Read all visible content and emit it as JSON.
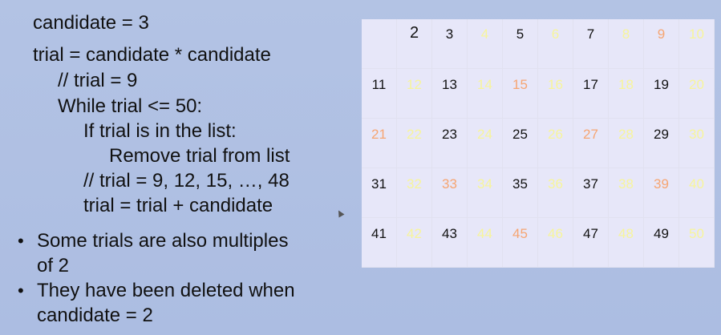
{
  "slide": {
    "code_lines": [
      "candidate = 3",
      "trial = candidate * candidate",
      "// trial = 9",
      "While trial <= 50:",
      "If trial is in the list:",
      "Remove trial from list",
      "// trial = 9, 12, 15, …, 48",
      "trial = trial + candidate"
    ],
    "bullets": [
      {
        "lines": [
          "Some trials are also multiples",
          "of 2"
        ]
      },
      {
        "lines": [
          "They have been deleted when",
          "candidate = 2"
        ]
      }
    ],
    "bullet_glyph": "•"
  },
  "grid": {
    "colors": {
      "black": "#111111",
      "yellow": "#f7f59a",
      "orange": "#f6a572"
    },
    "cells": [
      {
        "n": "",
        "c": "black"
      },
      {
        "n": "2",
        "c": "black"
      },
      {
        "n": "3",
        "c": "black"
      },
      {
        "n": "4",
        "c": "yellow"
      },
      {
        "n": "5",
        "c": "black"
      },
      {
        "n": "6",
        "c": "yellow"
      },
      {
        "n": "7",
        "c": "black"
      },
      {
        "n": "8",
        "c": "yellow"
      },
      {
        "n": "9",
        "c": "orange"
      },
      {
        "n": "10",
        "c": "yellow"
      },
      {
        "n": "11",
        "c": "black"
      },
      {
        "n": "12",
        "c": "yellow"
      },
      {
        "n": "13",
        "c": "black"
      },
      {
        "n": "14",
        "c": "yellow"
      },
      {
        "n": "15",
        "c": "orange"
      },
      {
        "n": "16",
        "c": "yellow"
      },
      {
        "n": "17",
        "c": "black"
      },
      {
        "n": "18",
        "c": "yellow"
      },
      {
        "n": "19",
        "c": "black"
      },
      {
        "n": "20",
        "c": "yellow"
      },
      {
        "n": "21",
        "c": "orange"
      },
      {
        "n": "22",
        "c": "yellow"
      },
      {
        "n": "23",
        "c": "black"
      },
      {
        "n": "24",
        "c": "yellow"
      },
      {
        "n": "25",
        "c": "black"
      },
      {
        "n": "26",
        "c": "yellow"
      },
      {
        "n": "27",
        "c": "orange"
      },
      {
        "n": "28",
        "c": "yellow"
      },
      {
        "n": "29",
        "c": "black"
      },
      {
        "n": "30",
        "c": "yellow"
      },
      {
        "n": "31",
        "c": "black"
      },
      {
        "n": "32",
        "c": "yellow"
      },
      {
        "n": "33",
        "c": "orange"
      },
      {
        "n": "34",
        "c": "yellow"
      },
      {
        "n": "35",
        "c": "black"
      },
      {
        "n": "36",
        "c": "yellow"
      },
      {
        "n": "37",
        "c": "black"
      },
      {
        "n": "38",
        "c": "yellow"
      },
      {
        "n": "39",
        "c": "orange"
      },
      {
        "n": "40",
        "c": "yellow"
      },
      {
        "n": "41",
        "c": "black"
      },
      {
        "n": "42",
        "c": "yellow"
      },
      {
        "n": "43",
        "c": "black"
      },
      {
        "n": "44",
        "c": "yellow"
      },
      {
        "n": "45",
        "c": "orange"
      },
      {
        "n": "46",
        "c": "yellow"
      },
      {
        "n": "47",
        "c": "black"
      },
      {
        "n": "48",
        "c": "yellow"
      },
      {
        "n": "49",
        "c": "black"
      },
      {
        "n": "50",
        "c": "yellow"
      }
    ]
  }
}
